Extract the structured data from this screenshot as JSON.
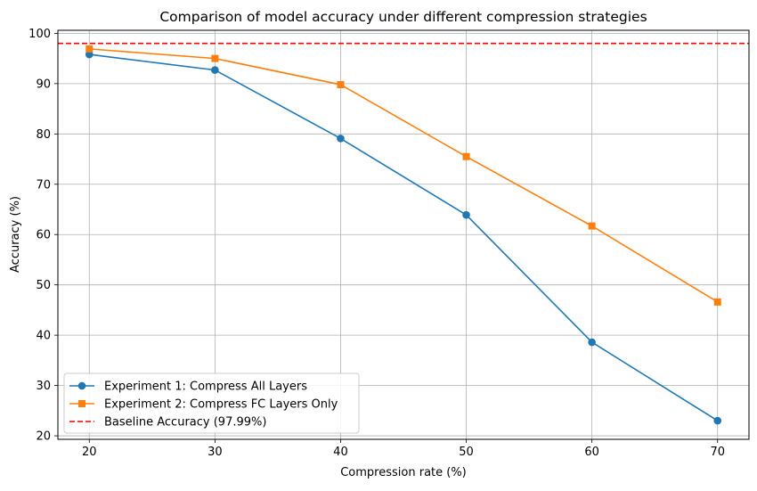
{
  "chart_data": {
    "type": "line",
    "title": "Comparison of model accuracy under different compression strategies",
    "xlabel": "Compression rate (%)",
    "ylabel": "Accuracy (%)",
    "x": [
      20,
      30,
      40,
      50,
      60,
      70
    ],
    "xlim": [
      17.5,
      72.5
    ],
    "ylim": [
      19.3,
      100.6
    ],
    "xticks": [
      20,
      30,
      40,
      50,
      60,
      70
    ],
    "yticks": [
      20,
      30,
      40,
      50,
      60,
      70,
      80,
      90,
      100
    ],
    "grid": true,
    "legend_position": "lower-left",
    "series": [
      {
        "name": "Experiment 1: Compress All Layers",
        "values": [
          95.8,
          92.7,
          79.1,
          63.9,
          38.6,
          23.0
        ],
        "color": "#1f77b4",
        "marker": "circle"
      },
      {
        "name": "Experiment 2: Compress FC Layers Only",
        "values": [
          96.9,
          95.0,
          89.8,
          75.5,
          61.7,
          46.6
        ],
        "color": "#ff7f0e",
        "marker": "square"
      }
    ],
    "baseline": {
      "name": "Baseline Accuracy (97.99%)",
      "value": 97.99,
      "color": "#ff0000",
      "style": "dashed"
    }
  }
}
